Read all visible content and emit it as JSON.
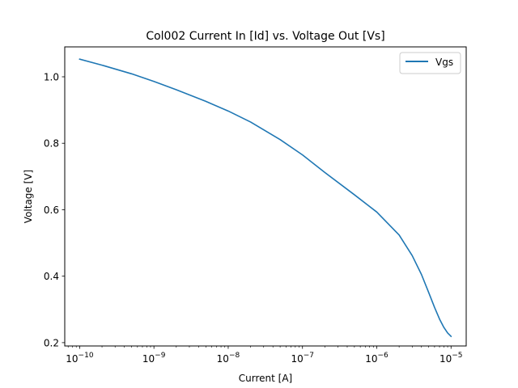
{
  "chart_data": {
    "type": "line",
    "title": "Col002 Current In [Id] vs. Voltage Out [Vs]",
    "xlabel": "Current [A]",
    "ylabel": "Voltage [V]",
    "xscale": "log",
    "xlim": [
      6.3e-11,
      1.6e-05
    ],
    "ylim": [
      0.19,
      1.09
    ],
    "xticks": [
      1e-10,
      1e-09,
      1e-08,
      1e-07,
      1e-06,
      1e-05
    ],
    "xtick_labels": [
      {
        "base": "10",
        "exp": "−10"
      },
      {
        "base": "10",
        "exp": "−9"
      },
      {
        "base": "10",
        "exp": "−8"
      },
      {
        "base": "10",
        "exp": "−7"
      },
      {
        "base": "10",
        "exp": "−6"
      },
      {
        "base": "10",
        "exp": "−5"
      }
    ],
    "yticks": [
      0.2,
      0.4,
      0.6,
      0.8,
      1.0
    ],
    "ytick_labels": [
      "0.2",
      "0.4",
      "0.6",
      "0.8",
      "1.0"
    ],
    "grid": false,
    "legend_position": "top-right",
    "series": [
      {
        "name": "Vgs",
        "color": "#1f77b4",
        "x": [
          1e-10,
          2e-10,
          5e-10,
          1e-09,
          2e-09,
          5e-09,
          1e-08,
          2e-08,
          5e-08,
          1e-07,
          2e-07,
          5e-07,
          1e-06,
          2e-06,
          3e-06,
          4e-06,
          5e-06,
          6e-06,
          7e-06,
          8e-06,
          9e-06,
          1e-05
        ],
        "y": [
          1.053,
          1.035,
          1.009,
          0.986,
          0.961,
          0.926,
          0.897,
          0.864,
          0.811,
          0.765,
          0.712,
          0.645,
          0.593,
          0.524,
          0.462,
          0.405,
          0.351,
          0.306,
          0.271,
          0.246,
          0.229,
          0.219
        ]
      }
    ]
  }
}
